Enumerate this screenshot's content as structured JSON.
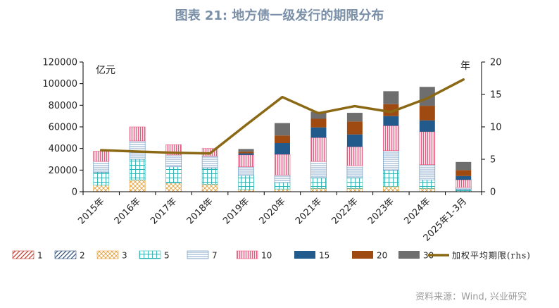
{
  "page": {
    "title": "图表 21: 地方债一级发行的期限分布",
    "source": "资料来源：Wind, 兴业研究"
  },
  "chart_data": {
    "type": "bar",
    "stacked": true,
    "categories": [
      "2015年",
      "2016年",
      "2017年",
      "2018年",
      "2019年",
      "2020年",
      "2021年",
      "2022年",
      "2023年",
      "2024年",
      "2025年1-3月"
    ],
    "y_left": {
      "label": "亿元",
      "ylim": [
        0,
        120000
      ],
      "ticks": [
        "0",
        "20000",
        "40000",
        "60000",
        "80000",
        "100000",
        "120000"
      ]
    },
    "y_right": {
      "label": "年",
      "ylim": [
        0,
        20
      ],
      "ticks": [
        "0",
        "5",
        "10",
        "15",
        "20"
      ]
    },
    "series": [
      {
        "name": "1",
        "color": "#c0392b",
        "pattern": "diag",
        "values": [
          0,
          0,
          0,
          0,
          0,
          0,
          0,
          0,
          0,
          0,
          0
        ]
      },
      {
        "name": "2",
        "color": "#2e4f7a",
        "pattern": "diag",
        "values": [
          0,
          0,
          0,
          0,
          0,
          0,
          0,
          0,
          0,
          0,
          0
        ]
      },
      {
        "name": "3",
        "color": "#e69a2e",
        "pattern": "cross",
        "values": [
          6000,
          11000,
          8000,
          7000,
          2000,
          2500,
          3000,
          3000,
          5000,
          3000,
          0
        ]
      },
      {
        "name": "5",
        "color": "#27b3b3",
        "pattern": "grid",
        "values": [
          12000,
          19000,
          15000,
          15000,
          13000,
          6000,
          10000,
          10000,
          15000,
          8000,
          2000
        ]
      },
      {
        "name": "7",
        "color": "#5a8ab8",
        "pattern": "hlines",
        "values": [
          10000,
          17000,
          11000,
          11000,
          8000,
          7000,
          15000,
          11000,
          18000,
          14000,
          2000
        ]
      },
      {
        "name": "10",
        "color": "#e8577d",
        "pattern": "vlines",
        "values": [
          9500,
          13000,
          9500,
          7000,
          11000,
          19000,
          22000,
          17500,
          23000,
          30500,
          7000
        ]
      },
      {
        "name": "15",
        "color": "#235a8c",
        "pattern": "solid",
        "values": [
          0,
          0,
          0,
          0,
          1500,
          10500,
          9500,
          11500,
          9000,
          10500,
          3500
        ]
      },
      {
        "name": "20",
        "color": "#9e4a10",
        "pattern": "solid",
        "values": [
          0,
          0,
          0,
          0,
          1500,
          7000,
          8000,
          12000,
          11000,
          13500,
          5500
        ]
      },
      {
        "name": "30",
        "color": "#6e6e6e",
        "pattern": "solid",
        "values": [
          0,
          0,
          0,
          0,
          2500,
          11500,
          6500,
          8000,
          12000,
          17500,
          7500
        ]
      }
    ],
    "line": {
      "name": "加权平均期限(rhs)",
      "color": "#8b6914",
      "axis": "right",
      "values": [
        6.4,
        6.2,
        6.0,
        5.9,
        10.3,
        14.6,
        12.1,
        13.2,
        12.3,
        14.4,
        17.3
      ]
    },
    "legend_position": "bottom",
    "grid": false
  }
}
